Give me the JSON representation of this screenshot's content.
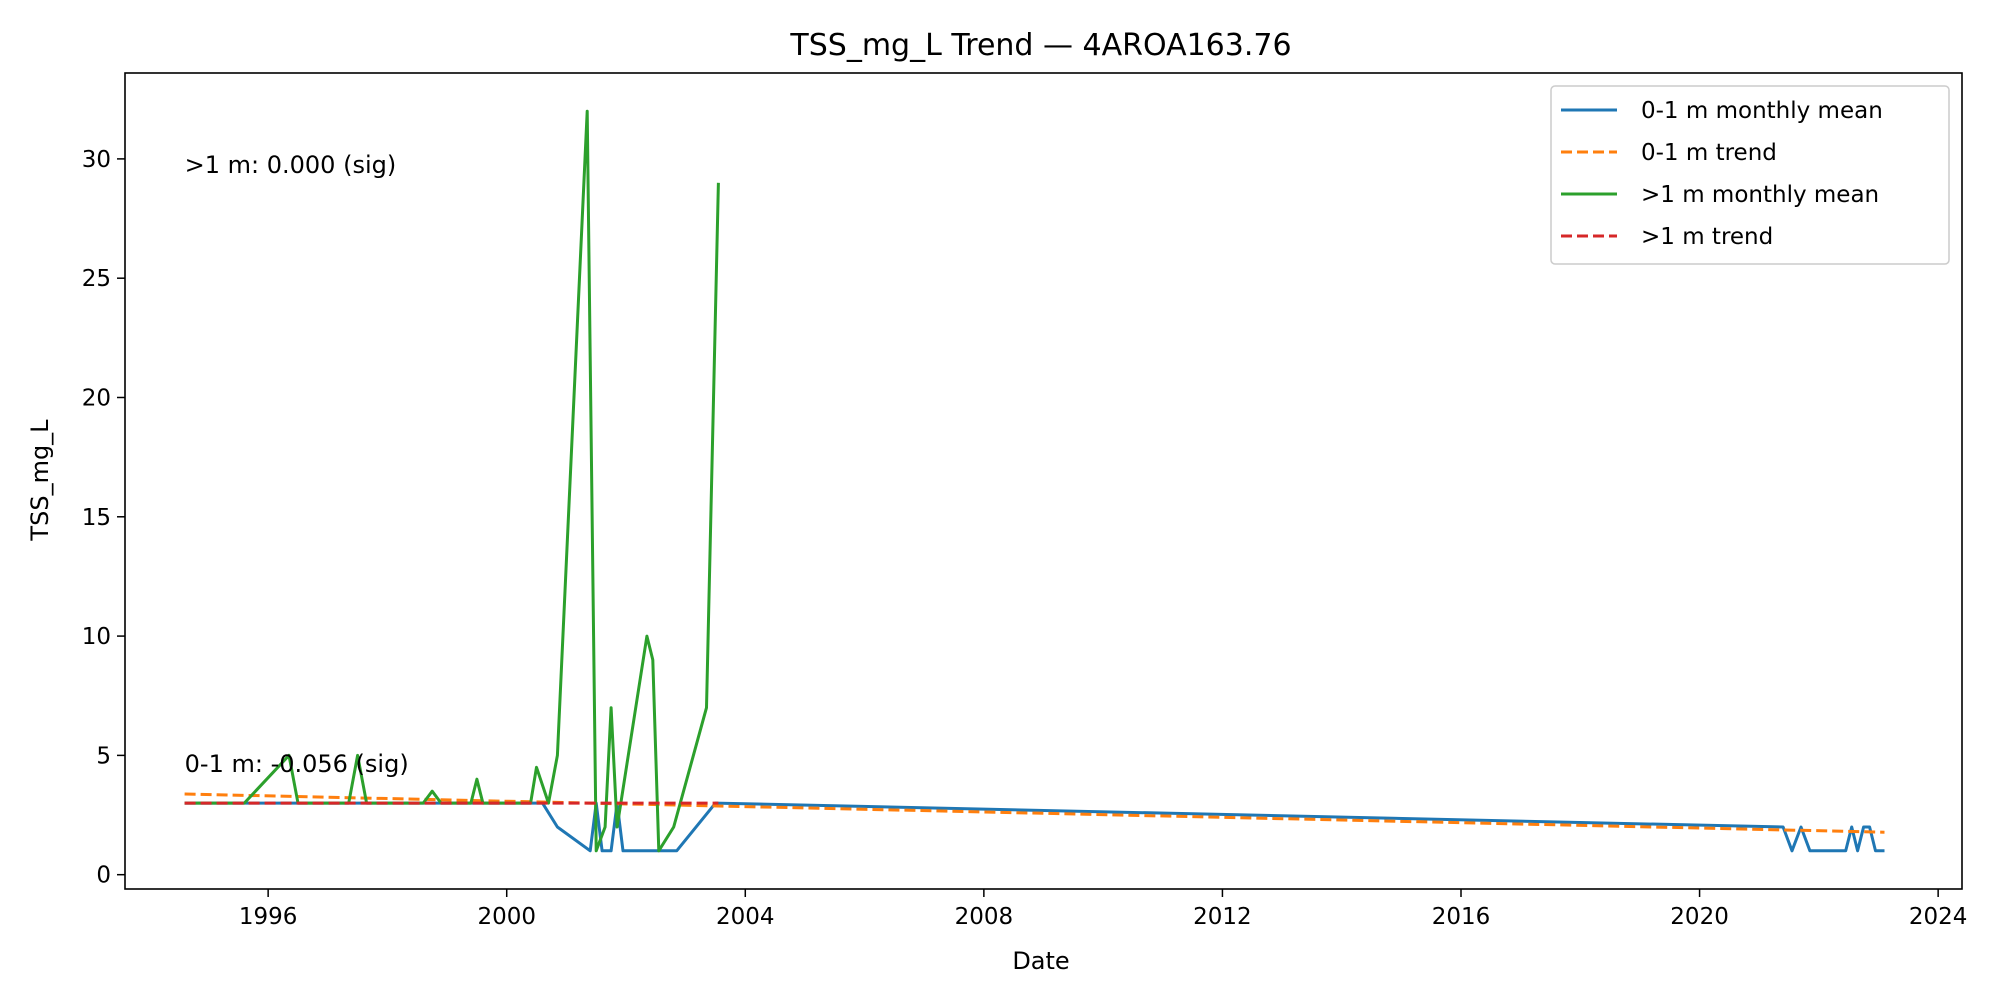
{
  "chart_data": {
    "type": "line",
    "title": "TSS_mg_L Trend — 4AROA163.76",
    "xlabel": "Date",
    "ylabel": "TSS_mg_L",
    "xlim": [
      1993.6,
      2024.4
    ],
    "ylim": [
      -0.6,
      33.6
    ],
    "x_ticks": [
      1996,
      2000,
      2004,
      2008,
      2012,
      2016,
      2020,
      2024
    ],
    "y_ticks": [
      0,
      5,
      10,
      15,
      20,
      25,
      30
    ],
    "grid": false,
    "legend_position": "top-right",
    "annotations": [
      {
        "text": ">1 m: 0.000 (sig)",
        "x": 1994.6,
        "y": 29.4
      },
      {
        "text": "0-1 m: -0.056 (sig)",
        "x": 1994.6,
        "y": 4.3
      }
    ],
    "series": [
      {
        "name": "0-1 m monthly mean",
        "color": "#1f77b4",
        "style": "solid",
        "points": [
          [
            1994.6,
            3
          ],
          [
            2000.6,
            3
          ],
          [
            2000.85,
            2
          ],
          [
            2001.4,
            1
          ],
          [
            2001.5,
            3
          ],
          [
            2001.6,
            1
          ],
          [
            2001.75,
            1
          ],
          [
            2001.85,
            3
          ],
          [
            2001.95,
            1
          ],
          [
            2002.85,
            1
          ],
          [
            2003.5,
            3
          ],
          [
            2021.4,
            2
          ],
          [
            2021.55,
            1
          ],
          [
            2021.7,
            2
          ],
          [
            2021.85,
            1
          ],
          [
            2022.45,
            1
          ],
          [
            2022.55,
            2
          ],
          [
            2022.65,
            1
          ],
          [
            2022.75,
            2
          ],
          [
            2022.85,
            2
          ],
          [
            2022.95,
            1
          ],
          [
            2023.1,
            1
          ]
        ]
      },
      {
        "name": "0-1 m trend",
        "color": "#ff7f0e",
        "style": "dashed",
        "points": [
          [
            1994.6,
            3.38
          ],
          [
            2023.1,
            1.78
          ]
        ]
      },
      {
        "name": ">1 m monthly mean",
        "color": "#2ca02c",
        "style": "solid",
        "points": [
          [
            1994.6,
            3
          ],
          [
            1995.6,
            3
          ],
          [
            1996.35,
            5
          ],
          [
            1996.5,
            3
          ],
          [
            1997.35,
            3
          ],
          [
            1997.5,
            5
          ],
          [
            1997.65,
            3
          ],
          [
            1998.6,
            3
          ],
          [
            1998.75,
            3.5
          ],
          [
            1998.9,
            3
          ],
          [
            1999.4,
            3
          ],
          [
            1999.5,
            4
          ],
          [
            1999.6,
            3
          ],
          [
            2000.4,
            3
          ],
          [
            2000.5,
            4.5
          ],
          [
            2000.7,
            3
          ],
          [
            2000.85,
            5
          ],
          [
            2001.35,
            32
          ],
          [
            2001.5,
            1
          ],
          [
            2001.65,
            2
          ],
          [
            2001.75,
            7
          ],
          [
            2001.85,
            2
          ],
          [
            2002.35,
            10
          ],
          [
            2002.45,
            9
          ],
          [
            2002.55,
            1
          ],
          [
            2002.8,
            2
          ],
          [
            2003.35,
            7
          ],
          [
            2003.55,
            29
          ]
        ]
      },
      {
        "name": ">1 m trend",
        "color": "#d62728",
        "style": "dashed",
        "points": [
          [
            1994.6,
            3.0
          ],
          [
            2003.55,
            3.0
          ]
        ]
      }
    ]
  }
}
